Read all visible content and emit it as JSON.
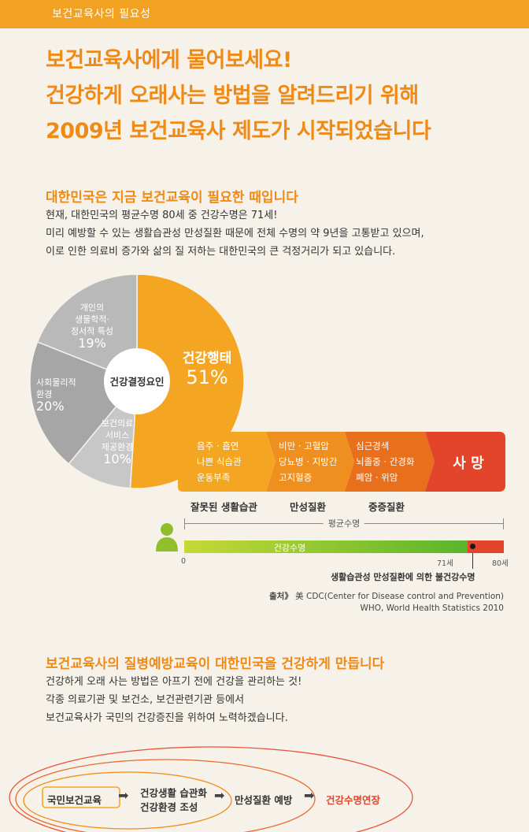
{
  "header": {
    "section_title": "보건교육사의 필요성"
  },
  "headline": {
    "lines": [
      "보건교육사에게 물어보세요!",
      "건강하게 오래사는 방법을 알려드리기 위해",
      "2009년 보건교육사 제도가 시작되었습니다"
    ]
  },
  "section1": {
    "title": "대한민국은 지금 보건교육이 필요한 때입니다",
    "paragraph": [
      "현재, 대한민국의 평균수명 80세 중 건강수명은 71세!",
      "미리 예방할 수 있는 생활습관성 만성질환 때문에 전체 수명의 약 9년을 고통받고 있으며,",
      "이로 인한 의료비 증가와 삶의 질 저하는 대한민국의 큰 걱정거리가 되고 있습니다."
    ]
  },
  "chart_data": {
    "type": "pie",
    "center_label": "건강결정요인",
    "slices": [
      {
        "label": "건강행태",
        "value": 51,
        "display": "51%",
        "color": "#f4a622"
      },
      {
        "label": "개인의 생물학적·정서적 특성",
        "label_lines": [
          "개인의",
          "생물학적·",
          "정서적 특성"
        ],
        "value": 19,
        "display": "19%",
        "color": "#b9b9b9"
      },
      {
        "label": "사회물리적 환경",
        "label_lines": [
          "사회물리적",
          "환경"
        ],
        "value": 20,
        "display": "20%",
        "color": "#a6a6a6"
      },
      {
        "label": "보건의료 서비스 제공환경",
        "label_lines": [
          "보건의료",
          "서비스",
          "제공환경"
        ],
        "value": 10,
        "display": "10%",
        "color": "#c7c7c7"
      }
    ]
  },
  "flow": {
    "stages": [
      {
        "items": [
          "음주 · 흡연",
          "나쁜 식습관",
          "운동부족"
        ],
        "label": "잘못된 생활습관",
        "color": "#f4a622"
      },
      {
        "items": [
          "비만 · 고혈압",
          "당뇨병 · 지방간",
          "고지혈증"
        ],
        "label": "만성질환",
        "color": "#ef8f1f"
      },
      {
        "items": [
          "심근경색",
          "뇌졸중 · 간경화",
          "폐암 · 위암"
        ],
        "label": "중증질환",
        "color": "#e86f1c"
      },
      {
        "items": [
          "사 망"
        ],
        "label": "",
        "color": "#e2452a"
      }
    ]
  },
  "lifespan": {
    "average_label": "평균수명",
    "healthy_label": "건강수명",
    "tick_0": "0",
    "tick_71": "71세",
    "tick_80": "80세",
    "average_years": 80,
    "healthy_years": 71,
    "note": "생활습관성 만성질환에 의한 불건강수명",
    "source_prefix": "출처》",
    "source_lines": [
      "美 CDC(Center for Disease control and Prevention)",
      "WHO, World Health Statistics 2010"
    ]
  },
  "section2": {
    "title": "보건교육사의 질병예방교육이 대한민국을 건강하게 만듭니다",
    "paragraph": [
      "건강하게 오래 사는 방법은 아프기 전에 건강을 관리하는 것!",
      "각종 의료기관 및 보건소, 보건관련기관 등에서",
      "보건교육사가 국민의 건강증진을 위하여 노력하겠습니다."
    ]
  },
  "bottom_flow": {
    "step1": "국민보건교육",
    "step2_line1": "건강생활 습관화",
    "step2_line2": "건강환경 조성",
    "step3": "만성질환 예방",
    "step4": "건강수명연장",
    "arrow": "➡"
  },
  "colors": {
    "orange": "#f08a16",
    "topbar": "#f2a223",
    "red": "#e2452a",
    "green_start": "#c6d936",
    "green_end": "#59b52c"
  }
}
